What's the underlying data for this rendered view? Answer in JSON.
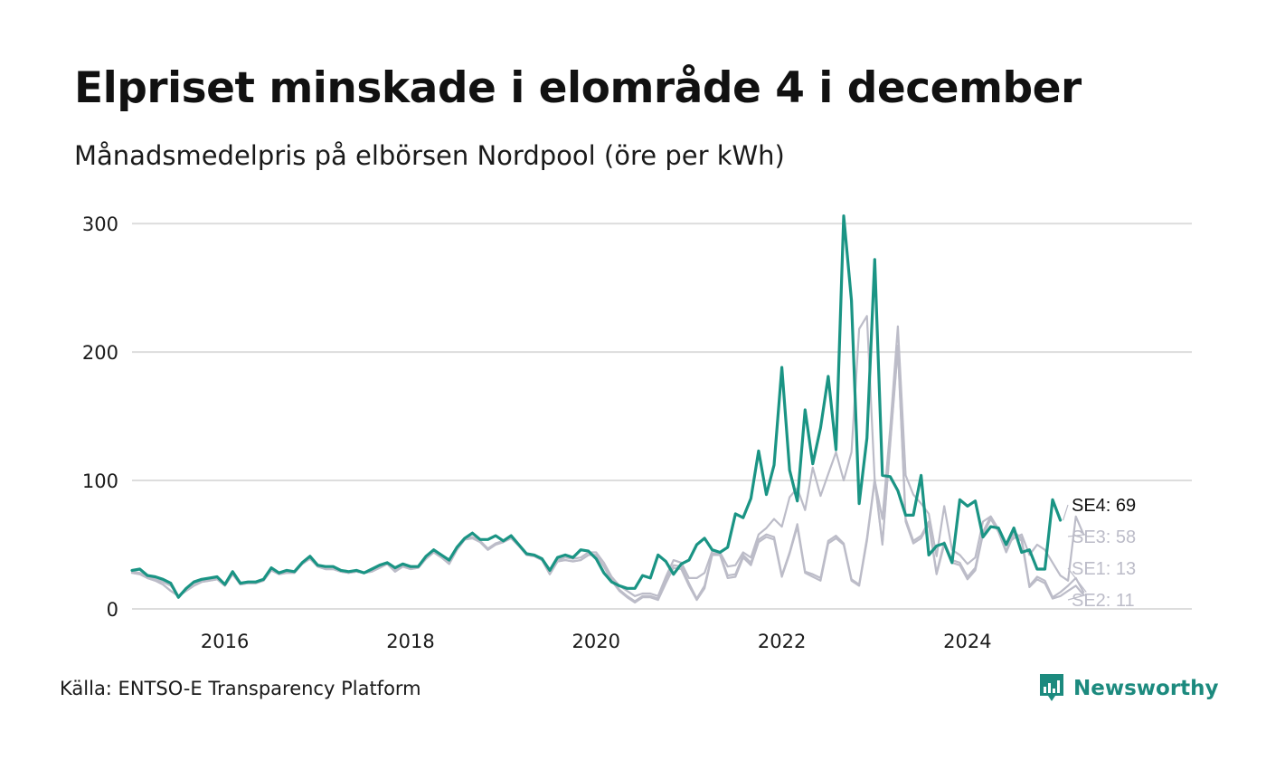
{
  "header": {
    "title": "Elpriset minskade i elområde 4 i december",
    "subtitle": "Månadsmedelpris på elbörsen Nordpool (öre per kWh)"
  },
  "footer": {
    "source": "Källa: ENTSO-E Transparency Platform",
    "brand": "Newsworthy"
  },
  "colors": {
    "highlight": "#1a9484",
    "other": "#bcbcc8",
    "grid": "#dddddd",
    "brand": "#1c8a7e"
  },
  "icons": {
    "brand_logo": "bar-chart-speech-bubble-icon"
  },
  "chart_data": {
    "type": "line",
    "title": "Elpriset minskade i elområde 4 i december",
    "subtitle": "Månadsmedelpris på elbörsen Nordpool (öre per kWh)",
    "xlabel": "",
    "ylabel": "",
    "x_start": "2015-01",
    "x_end": "2024-12",
    "xlim": [
      "2015-01",
      "2026-06"
    ],
    "ylim": [
      0,
      305
    ],
    "y_ticks": [
      0,
      100,
      200,
      300
    ],
    "y_tick_labels": [
      "0",
      "100",
      "200",
      "300"
    ],
    "x_ticks": [
      "2016-01",
      "2018-01",
      "2020-01",
      "2022-01",
      "2024-01"
    ],
    "x_tick_labels": [
      "2016",
      "2018",
      "2020",
      "2022",
      "2024"
    ],
    "grid": "horizontal",
    "legend": "direct labels at line ends",
    "series": [
      {
        "name": "SE1",
        "highlight": false,
        "end_label": "SE1: 13",
        "values": [
          28,
          27,
          24,
          22,
          19,
          14,
          10,
          14,
          18,
          21,
          22,
          23,
          18,
          27,
          19,
          20,
          20,
          22,
          30,
          27,
          28,
          28,
          35,
          39,
          33,
          31,
          31,
          29,
          28,
          29,
          28,
          29,
          32,
          35,
          29,
          33,
          31,
          32,
          39,
          44,
          40,
          35,
          46,
          54,
          55,
          52,
          46,
          50,
          52,
          55,
          49,
          42,
          41,
          38,
          27,
          37,
          38,
          37,
          38,
          42,
          42,
          33,
          23,
          15,
          10,
          6,
          10,
          10,
          8,
          22,
          34,
          33,
          20,
          8,
          18,
          43,
          43,
          26,
          27,
          42,
          36,
          54,
          58,
          56,
          26,
          44,
          66,
          29,
          27,
          24,
          53,
          57,
          51,
          23,
          19,
          55,
          101,
          51,
          130,
          205,
          70,
          53,
          57,
          68,
          28,
          52,
          38,
          36,
          25,
          32,
          60,
          72,
          62,
          45,
          60,
          55,
          18,
          25,
          22,
          9,
          13,
          18,
          24,
          13
        ]
      },
      {
        "name": "SE2",
        "highlight": false,
        "end_label": "SE2: 11",
        "values": [
          28,
          27,
          24,
          22,
          19,
          14,
          10,
          14,
          18,
          21,
          22,
          23,
          18,
          27,
          19,
          20,
          20,
          22,
          30,
          27,
          28,
          28,
          35,
          39,
          33,
          31,
          31,
          29,
          28,
          29,
          28,
          29,
          32,
          35,
          29,
          33,
          31,
          32,
          39,
          44,
          40,
          35,
          46,
          54,
          55,
          52,
          46,
          50,
          52,
          55,
          49,
          42,
          41,
          38,
          27,
          37,
          38,
          37,
          38,
          42,
          42,
          33,
          22,
          14,
          9,
          5,
          9,
          9,
          7,
          20,
          32,
          31,
          18,
          7,
          16,
          42,
          42,
          24,
          25,
          40,
          34,
          52,
          56,
          54,
          25,
          43,
          64,
          28,
          25,
          22,
          51,
          55,
          50,
          22,
          18,
          53,
          100,
          50,
          128,
          203,
          68,
          51,
          55,
          66,
          27,
          50,
          36,
          34,
          23,
          30,
          58,
          70,
          60,
          44,
          58,
          53,
          17,
          23,
          20,
          8,
          10,
          14,
          18,
          11
        ]
      },
      {
        "name": "SE3",
        "highlight": false,
        "end_label": "SE3: 58",
        "values": [
          29,
          28,
          25,
          23,
          21,
          18,
          10,
          16,
          20,
          22,
          23,
          24,
          19,
          28,
          20,
          20,
          21,
          23,
          31,
          28,
          29,
          29,
          36,
          40,
          33,
          31,
          31,
          29,
          28,
          29,
          28,
          30,
          33,
          35,
          30,
          34,
          32,
          33,
          40,
          45,
          41,
          36,
          47,
          55,
          56,
          53,
          47,
          51,
          53,
          56,
          50,
          43,
          42,
          39,
          28,
          38,
          40,
          39,
          40,
          44,
          44,
          36,
          25,
          18,
          14,
          10,
          12,
          12,
          10,
          25,
          38,
          36,
          24,
          24,
          28,
          45,
          44,
          33,
          34,
          44,
          40,
          58,
          63,
          70,
          64,
          87,
          94,
          77,
          110,
          88,
          105,
          122,
          100,
          122,
          218,
          228,
          100,
          70,
          140,
          220,
          104,
          89,
          82,
          74,
          41,
          80,
          46,
          42,
          35,
          40,
          68,
          72,
          62,
          50,
          55,
          58,
          42,
          50,
          46,
          36,
          26,
          22,
          72,
          58
        ]
      },
      {
        "name": "SE4",
        "highlight": true,
        "end_label": "SE4: 69",
        "values": [
          30,
          31,
          26,
          25,
          23,
          20,
          9,
          16,
          21,
          23,
          24,
          25,
          19,
          29,
          20,
          21,
          21,
          23,
          32,
          28,
          30,
          29,
          36,
          41,
          34,
          33,
          33,
          30,
          29,
          30,
          28,
          31,
          34,
          36,
          32,
          35,
          33,
          33,
          41,
          46,
          42,
          38,
          48,
          55,
          59,
          54,
          54,
          57,
          53,
          57,
          50,
          43,
          42,
          39,
          30,
          40,
          42,
          40,
          46,
          45,
          39,
          28,
          21,
          18,
          16,
          16,
          26,
          24,
          42,
          37,
          27,
          35,
          38,
          50,
          55,
          46,
          44,
          48,
          74,
          71,
          86,
          123,
          89,
          112,
          188,
          108,
          84,
          155,
          113,
          141,
          181,
          124,
          306,
          240,
          82,
          133,
          272,
          104,
          103,
          92,
          73,
          73,
          104,
          42,
          49,
          51,
          36,
          85,
          80,
          84,
          56,
          64,
          63,
          50,
          63,
          44,
          46,
          31,
          31,
          85,
          69
        ]
      }
    ]
  }
}
